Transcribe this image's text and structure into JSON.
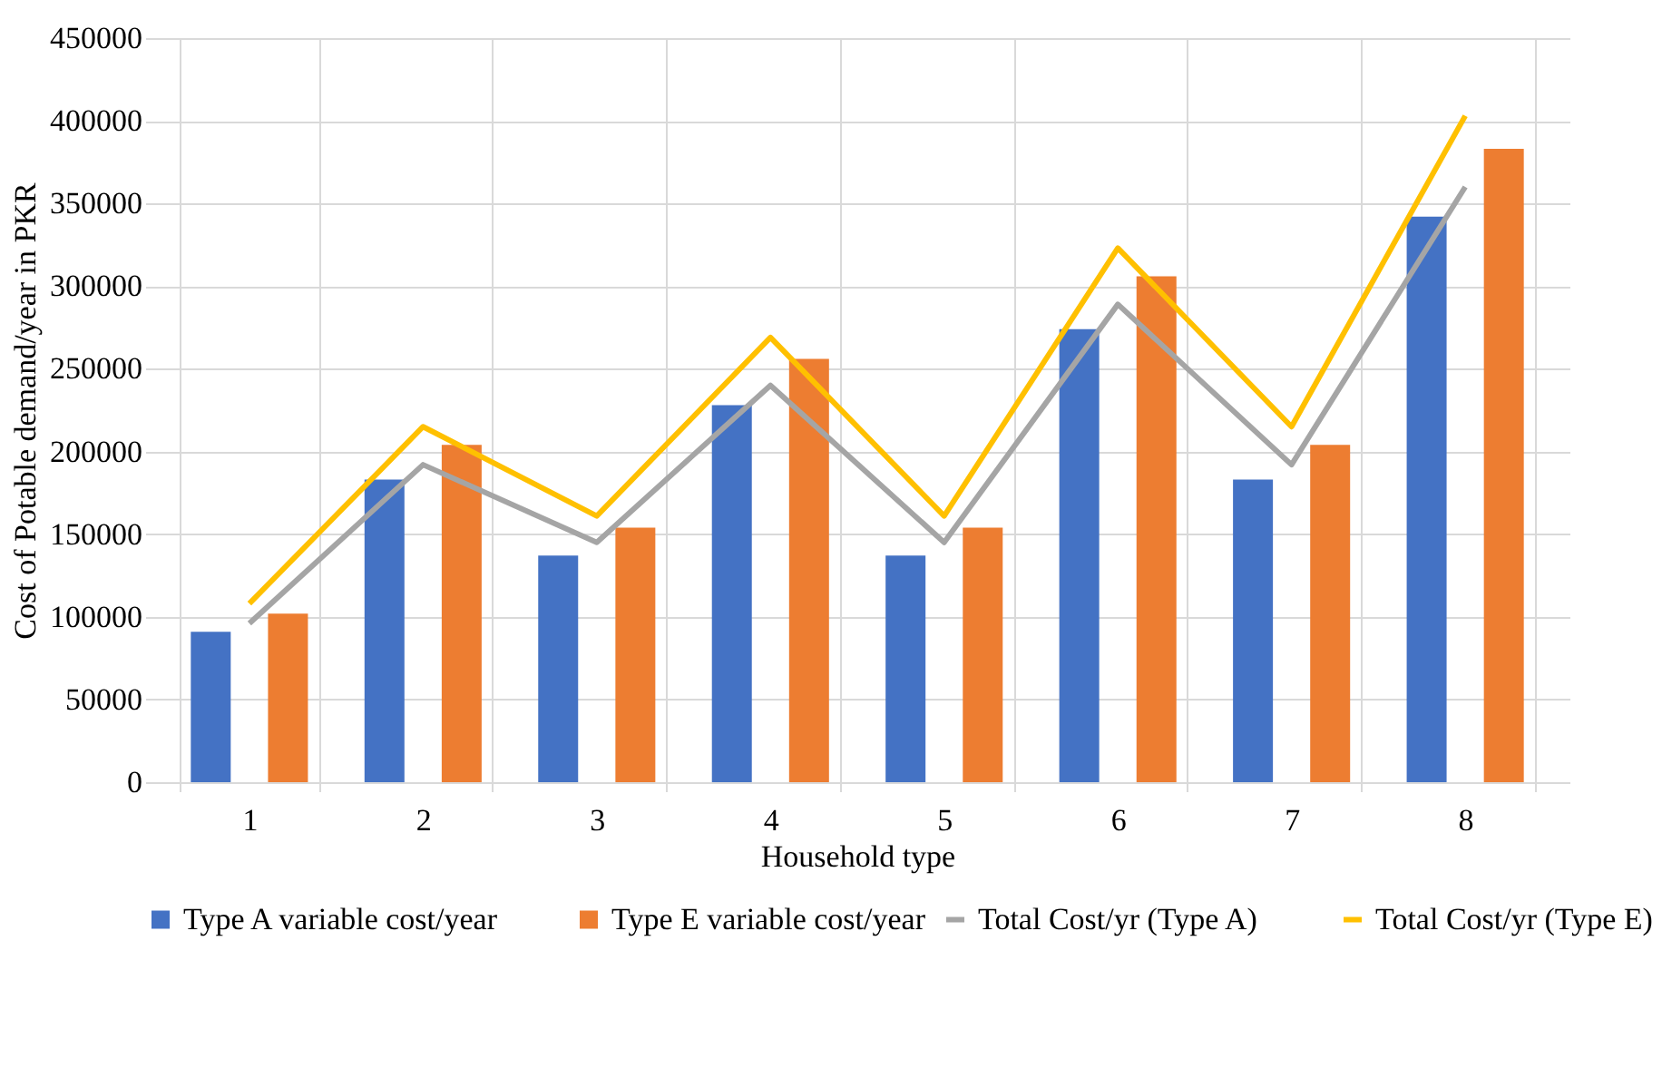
{
  "chart_data": {
    "type": "bar",
    "xlabel": "Household type",
    "ylabel": "Cost of Potable demand/year in PKR",
    "categories": [
      "1",
      "2",
      "3",
      "4",
      "5",
      "6",
      "7",
      "8"
    ],
    "series": [
      {
        "name": "Type A variable cost/year",
        "color": "#4472c4",
        "values": [
          91000,
          183000,
          137000,
          228000,
          137000,
          274000,
          183000,
          342000
        ]
      },
      {
        "name": "Type E variable cost/year",
        "color": "#ed7d31",
        "values": [
          102000,
          204000,
          154000,
          256000,
          154000,
          306000,
          204000,
          383000
        ]
      },
      {
        "name": "Total Cost/yr (Type A)",
        "type": "line",
        "color": "#a5a5a5",
        "values": [
          96000,
          192000,
          145000,
          240000,
          145000,
          289000,
          192000,
          360000
        ]
      },
      {
        "name": "Total Cost/yr (Type E)",
        "type": "line",
        "color": "#ffc000",
        "values": [
          108000,
          215000,
          161000,
          269000,
          161000,
          323000,
          215000,
          403000
        ]
      }
    ],
    "ylim": [
      0,
      450000
    ],
    "yticks": [
      0,
      50000,
      100000,
      150000,
      200000,
      250000,
      300000,
      350000,
      400000,
      450000
    ],
    "grid": true,
    "legend": "bottom"
  }
}
